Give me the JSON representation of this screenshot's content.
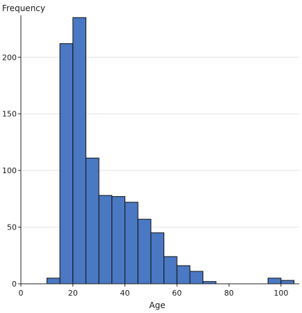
{
  "chart_data": {
    "type": "bar",
    "title": "",
    "xlabel": "Age",
    "ylabel": "Frequency",
    "xlim": [
      0,
      107
    ],
    "ylim": [
      0,
      237
    ],
    "bin_width": 5,
    "x_ticks": [
      0,
      20,
      40,
      60,
      80,
      100
    ],
    "y_ticks": [
      0,
      50,
      100,
      150,
      200
    ],
    "grid": "horizontal",
    "legend": "none",
    "bar_color": "#4a78c2",
    "bar_edge_color": "#111111",
    "bins": [
      {
        "start": 10,
        "end": 15,
        "count": 5
      },
      {
        "start": 15,
        "end": 20,
        "count": 212
      },
      {
        "start": 20,
        "end": 25,
        "count": 235
      },
      {
        "start": 25,
        "end": 30,
        "count": 111
      },
      {
        "start": 30,
        "end": 35,
        "count": 78
      },
      {
        "start": 35,
        "end": 40,
        "count": 77
      },
      {
        "start": 40,
        "end": 45,
        "count": 72
      },
      {
        "start": 45,
        "end": 50,
        "count": 57
      },
      {
        "start": 50,
        "end": 55,
        "count": 45
      },
      {
        "start": 55,
        "end": 60,
        "count": 24
      },
      {
        "start": 60,
        "end": 65,
        "count": 16
      },
      {
        "start": 65,
        "end": 70,
        "count": 11
      },
      {
        "start": 70,
        "end": 75,
        "count": 2
      },
      {
        "start": 95,
        "end": 100,
        "count": 5
      },
      {
        "start": 100,
        "end": 105,
        "count": 3
      }
    ]
  }
}
